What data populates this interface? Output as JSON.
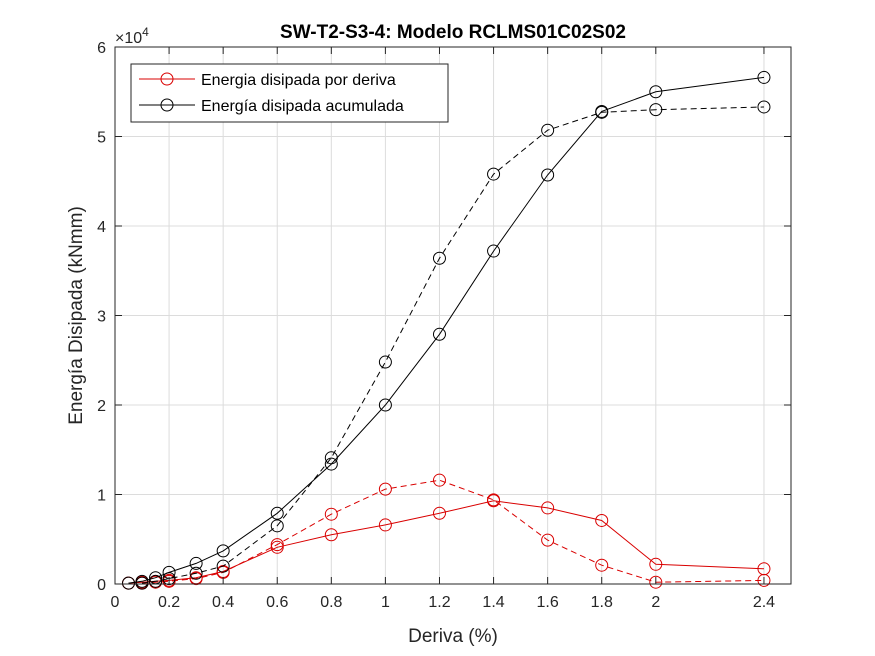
{
  "chart_data": {
    "type": "line",
    "title": "SW-T2-S3-4: Modelo RCLMS01C02S02",
    "xlabel": "Deriva (%)",
    "ylabel": "Energía Disipada (kNmm)",
    "y_exponent_label": "×10",
    "y_exponent_power": "4",
    "xlim": [
      0,
      2.5
    ],
    "ylim": [
      0,
      60000
    ],
    "xticks": [
      0,
      0.2,
      0.4,
      0.6,
      0.8,
      1,
      1.2,
      1.4,
      1.6,
      1.8,
      2,
      2.4
    ],
    "xtick_labels": [
      "0",
      "0.2",
      "0.4",
      "0.6",
      "0.8",
      "1",
      "1.2",
      "1.4",
      "1.6",
      "1.8",
      "2",
      "2.4"
    ],
    "yticks": [
      0,
      10000,
      20000,
      30000,
      40000,
      50000,
      60000
    ],
    "ytick_labels": [
      "0",
      "1",
      "2",
      "3",
      "4",
      "5",
      "6"
    ],
    "grid": true,
    "legend_position": "top-left",
    "legend": [
      "Energia disipada por deriva",
      "Energía disipada acumulada"
    ],
    "series": [
      {
        "name": "Energia disipada por deriva",
        "color": "#d90000",
        "line_style": "solid",
        "x": [
          0.05,
          0.1,
          0.15,
          0.2,
          0.3,
          0.4,
          0.6,
          0.8,
          1.0,
          1.2,
          1.4,
          1.6,
          1.8,
          2.0,
          2.4
        ],
        "y": [
          100,
          200,
          300,
          400,
          700,
          1400,
          4100,
          5500,
          6600,
          7900,
          9300,
          8500,
          7100,
          2200,
          1700
        ]
      },
      {
        "name": "",
        "color": "#d90000",
        "line_style": "dashed",
        "x": [
          0.1,
          0.15,
          0.2,
          0.3,
          0.4,
          0.6,
          0.8,
          1.0,
          1.2,
          1.4,
          1.6,
          1.8,
          2.0,
          2.4
        ],
        "y": [
          100,
          200,
          300,
          600,
          1300,
          4400,
          7800,
          10600,
          11600,
          9400,
          4900,
          2100,
          200,
          400
        ]
      },
      {
        "name": "Energía disipada acumulada",
        "color": "#000000",
        "line_style": "solid",
        "x": [
          0.05,
          0.1,
          0.15,
          0.2,
          0.3,
          0.4,
          0.6,
          0.8,
          1.0,
          1.2,
          1.4,
          1.6,
          1.8,
          2.0,
          2.4
        ],
        "y": [
          100,
          300,
          700,
          1300,
          2300,
          3700,
          7900,
          13400,
          20000,
          27900,
          37200,
          45700,
          52800,
          55000,
          56600
        ]
      },
      {
        "name": "",
        "color": "#000000",
        "line_style": "dashed",
        "x": [
          0.1,
          0.15,
          0.2,
          0.3,
          0.4,
          0.6,
          0.8,
          1.0,
          1.2,
          1.4,
          1.6,
          1.8,
          2.0,
          2.4
        ],
        "y": [
          100,
          300,
          600,
          1200,
          2000,
          6500,
          14100,
          24800,
          36400,
          45800,
          50700,
          52700,
          53000,
          53300
        ]
      }
    ]
  }
}
